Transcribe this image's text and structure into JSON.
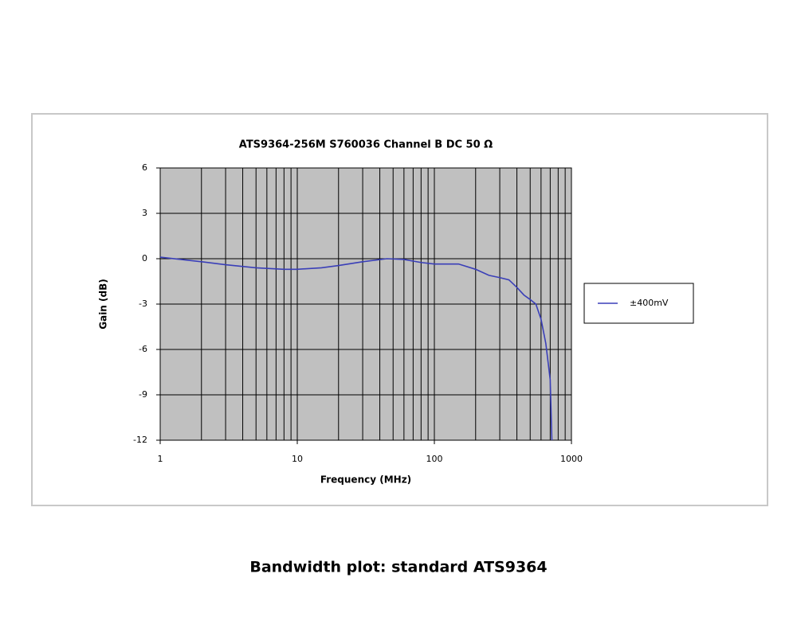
{
  "chart_data": {
    "type": "line",
    "title": "ATS9364-256M  S760036 Channel B DC 50 Ω",
    "x_label": "Frequency (MHz)",
    "y_label": "Gain (dB)",
    "x": [
      1,
      2,
      3,
      5,
      8,
      10,
      15,
      20,
      30,
      45,
      60,
      80,
      100,
      150,
      200,
      250,
      300,
      350,
      400,
      450,
      500,
      550,
      600,
      650,
      700,
      720
    ],
    "series": [
      {
        "name": "±400mV",
        "color": "#3a3fb8",
        "values": [
          0.1,
          -0.2,
          -0.4,
          -0.6,
          -0.7,
          -0.7,
          -0.6,
          -0.45,
          -0.2,
          0.0,
          -0.05,
          -0.25,
          -0.35,
          -0.35,
          -0.7,
          -1.1,
          -1.25,
          -1.4,
          -1.9,
          -2.4,
          -2.7,
          -3.0,
          -4.0,
          -5.6,
          -8.0,
          -12
        ]
      }
    ],
    "xlim": [
      1,
      1000
    ],
    "xticks": [
      1,
      10,
      100,
      1000
    ],
    "xlog": true,
    "ylim": [
      -12,
      6
    ],
    "yticks": [
      -12,
      -9,
      -6,
      -3,
      0,
      3,
      6
    ],
    "grid": true,
    "legend": "right",
    "background": "#c0c0c0"
  },
  "caption": "Bandwidth plot: standard ATS9364"
}
